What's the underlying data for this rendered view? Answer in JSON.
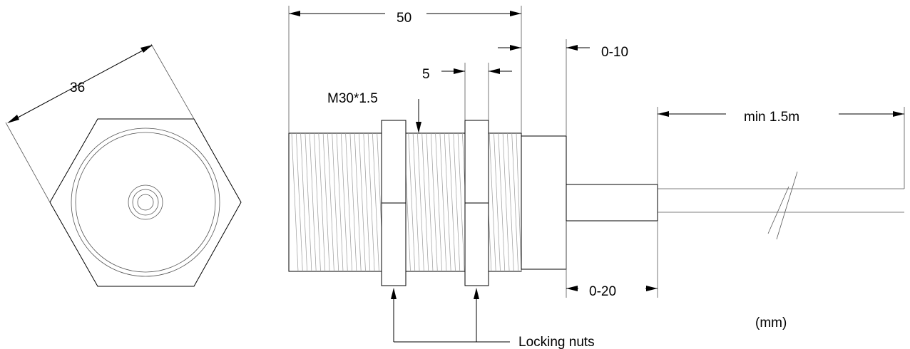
{
  "labels": {
    "hex_across_flats": "36",
    "overall_length": "50",
    "clearance_top": "0-10",
    "nut_width": "5",
    "thread_spec": "M30*1.5",
    "cable_length": "min 1.5m",
    "clearance_bottom": "0-20",
    "units": "(mm)",
    "locking_nuts": "Locking nuts"
  }
}
